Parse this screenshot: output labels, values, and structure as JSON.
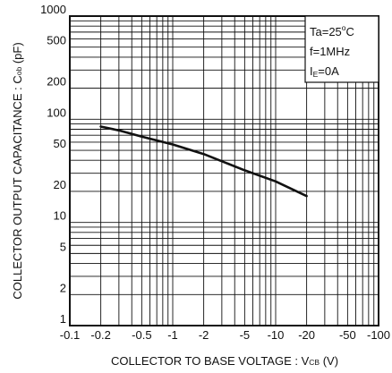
{
  "chart_data": {
    "type": "line",
    "ylabel_main": "COLLECTOR OUTPUT CAPACITANCE : C",
    "ylabel_sub": "ob",
    "ylabel_unit": " (pF)",
    "xlabel_main": "COLLECTOR TO BASE VOLTAGE : V",
    "xlabel_sub": "CB",
    "xlabel_unit": " (V)",
    "x_scale": "log",
    "y_scale": "log",
    "xlim": [
      -0.1,
      -100
    ],
    "ylim": [
      1,
      1000
    ],
    "x_ticks": [
      "-0.1",
      "-0.2",
      "-0.5",
      "-1",
      "-2",
      "-5",
      "-10",
      "-20",
      "-50",
      "-100"
    ],
    "y_ticks": [
      "1",
      "2",
      "5",
      "10",
      "20",
      "50",
      "100",
      "200",
      "500",
      "1000"
    ],
    "conditions": {
      "ta_prefix": "Ta=25",
      "ta_sup": "o",
      "ta_suffix": "C",
      "freq": "f=1MHz",
      "ie_main": "I",
      "ie_sub": "E",
      "ie_suffix": "=0A"
    },
    "grid": true,
    "series": [
      {
        "x": [
          -0.2,
          -0.3,
          -0.5,
          -1,
          -2,
          -5,
          -10,
          -20
        ],
        "y": [
          85,
          78,
          68,
          57,
          46,
          32,
          25,
          18
        ]
      }
    ]
  }
}
